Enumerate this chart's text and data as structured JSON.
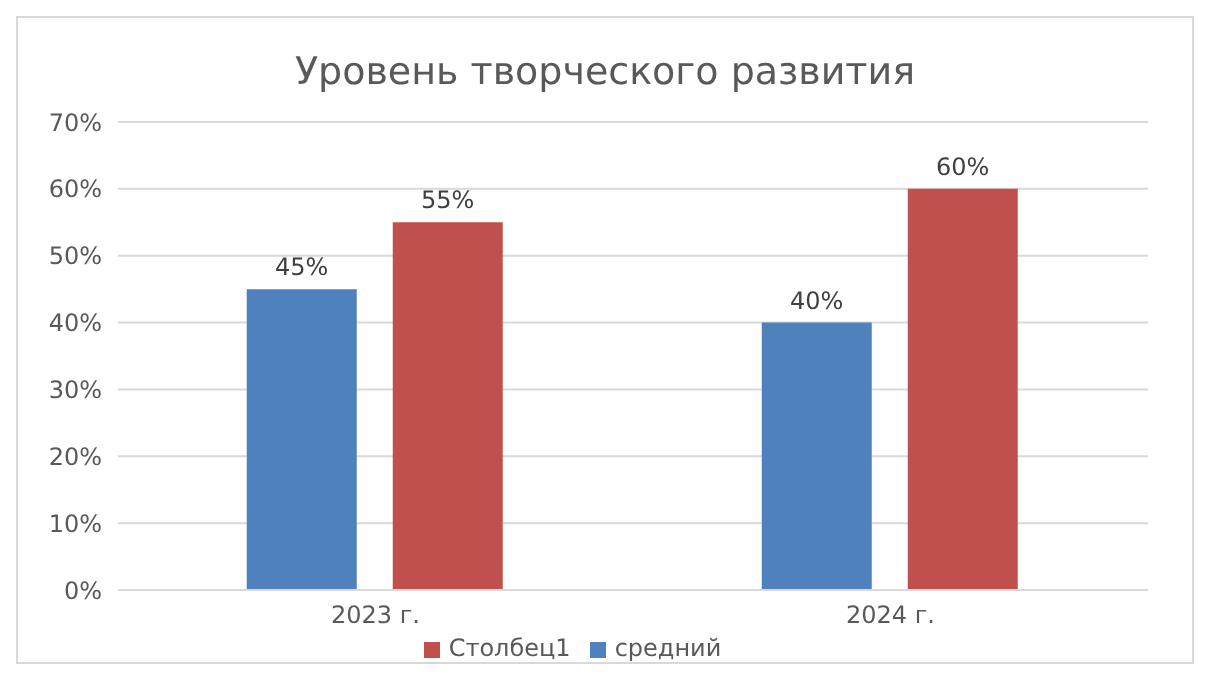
{
  "chart_data": {
    "type": "bar",
    "title": "Уровень творческого развития",
    "categories": [
      "2023 г.",
      "2024 г."
    ],
    "series": [
      {
        "name": "средний",
        "color": "#4f81bd",
        "values": [
          45,
          40
        ],
        "value_labels": [
          "45%",
          "40%"
        ]
      },
      {
        "name": "Столбец1",
        "color": "#c0504d",
        "values": [
          55,
          60
        ],
        "value_labels": [
          "55%",
          "60%"
        ]
      }
    ],
    "ylim": [
      0,
      70
    ],
    "yticks": [
      {
        "value": 0,
        "label": "0%"
      },
      {
        "value": 10,
        "label": "10%"
      },
      {
        "value": 20,
        "label": "20%"
      },
      {
        "value": 30,
        "label": "30%"
      },
      {
        "value": 40,
        "label": "40%"
      },
      {
        "value": 50,
        "label": "50%"
      },
      {
        "value": 60,
        "label": "60%"
      },
      {
        "value": 70,
        "label": "70%"
      }
    ],
    "grid": "y",
    "legend": "bottom"
  }
}
